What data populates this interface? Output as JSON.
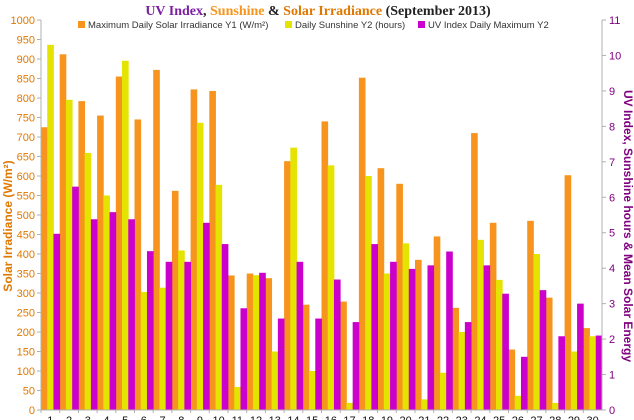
{
  "title": {
    "part1": "UV Index",
    "sep1": ", ",
    "part2": "Sunshine",
    "sep2": " & ",
    "part3": "Solar Irradiance",
    "part4": " (September 2013)"
  },
  "colors": {
    "irradiance": "#f7941d",
    "sunshine": "#e4e400",
    "uv": "#cc00cc",
    "title_uv": "#7b1fa2",
    "title_sunshine": "#f7941d",
    "title_solar": "#e07800",
    "title_date": "#222222",
    "left_axis": "#e07800",
    "right_axis": "#800080"
  },
  "chart_data": {
    "type": "bar",
    "categories": [
      "1",
      "2",
      "3",
      "4",
      "5",
      "6",
      "7",
      "8",
      "9",
      "10",
      "11",
      "12",
      "13",
      "14",
      "15",
      "16",
      "17",
      "18",
      "19",
      "20",
      "21",
      "22",
      "23",
      "24",
      "25",
      "26",
      "27",
      "28",
      "29",
      "30"
    ],
    "xlabel": "",
    "ylabel": "Solar Irradiance (W/m²)",
    "y2label": "UV Index, Sunshine hours & Mean Solar Energy",
    "ylim": [
      0,
      1000
    ],
    "y2lim": [
      0,
      11
    ],
    "yticks": [
      "0",
      "50",
      "100",
      "150",
      "200",
      "250",
      "300",
      "350",
      "400",
      "450",
      "500",
      "550",
      "600",
      "650",
      "700",
      "750",
      "800",
      "850",
      "900",
      "950",
      "1000"
    ],
    "y2ticks": [
      "0",
      "1",
      "2",
      "3",
      "4",
      "5",
      "6",
      "7",
      "8",
      "9",
      "10",
      "11"
    ],
    "grid": false,
    "legend_position": "top",
    "series": [
      {
        "name": "Maximum Daily Solar Irradiance Y1 (W/m²)",
        "axis": "left",
        "values": [
          725,
          912,
          792,
          755,
          855,
          745,
          872,
          562,
          822,
          818,
          345,
          350,
          338,
          638,
          270,
          740,
          278,
          852,
          620,
          580,
          385,
          445,
          262,
          710,
          480,
          155,
          485,
          288,
          602,
          210
        ]
      },
      {
        "name": "Daily Sunshine Y2 (hours)",
        "axis": "right",
        "values": [
          10.3,
          8.75,
          7.25,
          6.05,
          9.85,
          3.33,
          3.45,
          4.5,
          8.1,
          6.35,
          0.65,
          3.8,
          1.65,
          7.4,
          1.1,
          6.9,
          0.2,
          6.6,
          3.85,
          4.7,
          0.3,
          1.05,
          2.2,
          4.8,
          3.67,
          0.4,
          4.4,
          0.2,
          1.65,
          2.08
        ]
      },
      {
        "name": "UV Index Daily Maximum Y2",
        "axis": "right",
        "values": [
          4.97,
          6.3,
          5.38,
          5.58,
          5.38,
          4.48,
          4.18,
          4.18,
          5.28,
          4.68,
          2.87,
          3.87,
          2.58,
          4.18,
          2.58,
          3.68,
          2.48,
          4.68,
          4.18,
          3.98,
          4.08,
          4.47,
          2.48,
          4.08,
          3.28,
          1.5,
          3.38,
          2.08,
          3.0,
          2.1
        ]
      }
    ]
  }
}
